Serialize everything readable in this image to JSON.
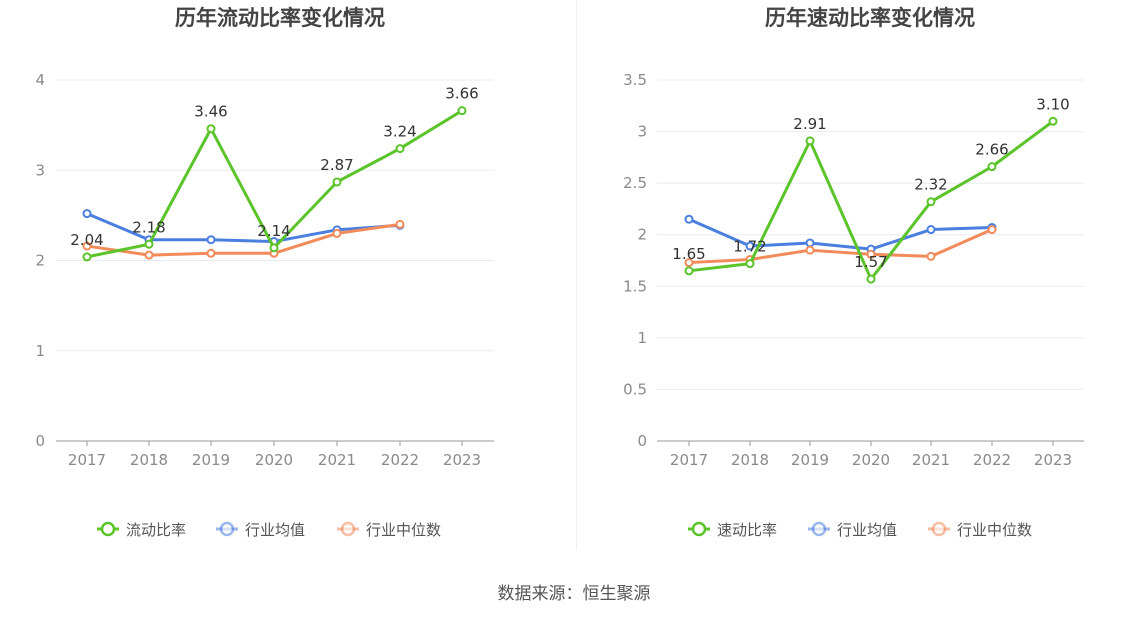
{
  "source": "数据来源：恒生聚源",
  "chart_data": [
    {
      "type": "line",
      "title": "历年流动比率变化情况",
      "categories": [
        "2017",
        "2018",
        "2019",
        "2020",
        "2021",
        "2022",
        "2023"
      ],
      "ylim": [
        0,
        4
      ],
      "yticks": [
        0,
        1,
        2,
        3,
        4
      ],
      "ytick_labels": [
        "0",
        "1",
        "2",
        "3",
        "4"
      ],
      "grid": true,
      "legend_position": "bottom",
      "series": [
        {
          "name": "流动比率",
          "color": "#5bc42a",
          "values": [
            2.04,
            2.18,
            3.46,
            2.14,
            2.87,
            3.24,
            3.66
          ],
          "labels": [
            "2.04",
            "2.18",
            "3.46",
            "2.14",
            "2.87",
            "3.24",
            "3.66"
          ]
        },
        {
          "name": "行业均值",
          "color": "#4a7fe0",
          "values": [
            2.52,
            2.23,
            2.23,
            2.21,
            2.34,
            2.39,
            null
          ]
        },
        {
          "name": "行业中位数",
          "color": "#f28a5a",
          "values": [
            2.16,
            2.06,
            2.08,
            2.08,
            2.3,
            2.4,
            null
          ]
        }
      ]
    },
    {
      "type": "line",
      "title": "历年速动比率变化情况",
      "categories": [
        "2017",
        "2018",
        "2019",
        "2020",
        "2021",
        "2022",
        "2023"
      ],
      "ylim": [
        0,
        3.5
      ],
      "yticks": [
        0,
        0.5,
        1,
        1.5,
        2,
        2.5,
        3,
        3.5
      ],
      "ytick_labels": [
        "0",
        "0.5",
        "1",
        "1.5",
        "2",
        "2.5",
        "3",
        "3.5"
      ],
      "grid": true,
      "legend_position": "bottom",
      "series": [
        {
          "name": "速动比率",
          "color": "#5bc42a",
          "values": [
            1.65,
            1.72,
            2.91,
            1.57,
            2.32,
            2.66,
            3.1
          ],
          "labels": [
            "1.65",
            "1.72",
            "2.91",
            "1.57",
            "2.32",
            "2.66",
            "3.10"
          ]
        },
        {
          "name": "行业均值",
          "color": "#4a7fe0",
          "values": [
            2.15,
            1.89,
            1.92,
            1.86,
            2.05,
            2.07,
            null
          ]
        },
        {
          "name": "行业中位数",
          "color": "#f28a5a",
          "values": [
            1.73,
            1.76,
            1.85,
            1.81,
            1.79,
            2.05,
            null
          ]
        }
      ]
    }
  ]
}
